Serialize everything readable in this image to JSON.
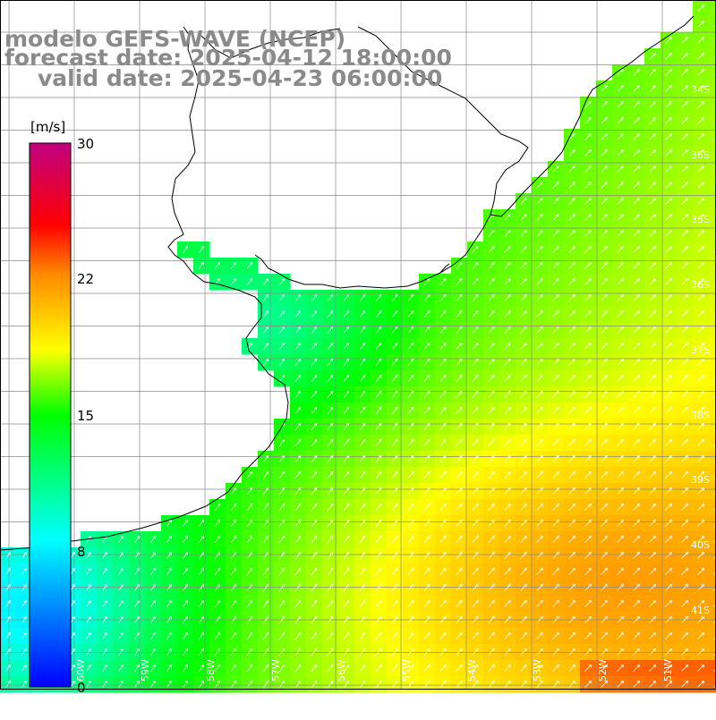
{
  "title": {
    "model": "modelo GEFS-WAVE (NCEP)",
    "forecast": "forecast date: 2025-04-12 18:00:00",
    "valid": "valid date: 2025-04-23 06:00:00"
  },
  "colorbar": {
    "unit": "[m/s]",
    "ticks": [
      "30",
      "22",
      "15",
      "8",
      "0"
    ]
  },
  "lat_labels": [
    "34S",
    "35S",
    "35S",
    "36S",
    "37S",
    "38S",
    "39S",
    "40S",
    "41S"
  ],
  "lon_labels": [
    "60W",
    "59W",
    "58W",
    "57W",
    "56W",
    "55W",
    "54W",
    "53W",
    "52W",
    "51W"
  ],
  "field": {
    "variable": "wind speed",
    "scale": [
      "#0000ff",
      "#00ffff",
      "#00ff00",
      "#ffff00",
      "#ff8800",
      "#ff0000",
      "#c00080"
    ],
    "arrow_color": "#ffffff",
    "coast_color": "#000000",
    "grid_color": "#8a8a8a"
  }
}
